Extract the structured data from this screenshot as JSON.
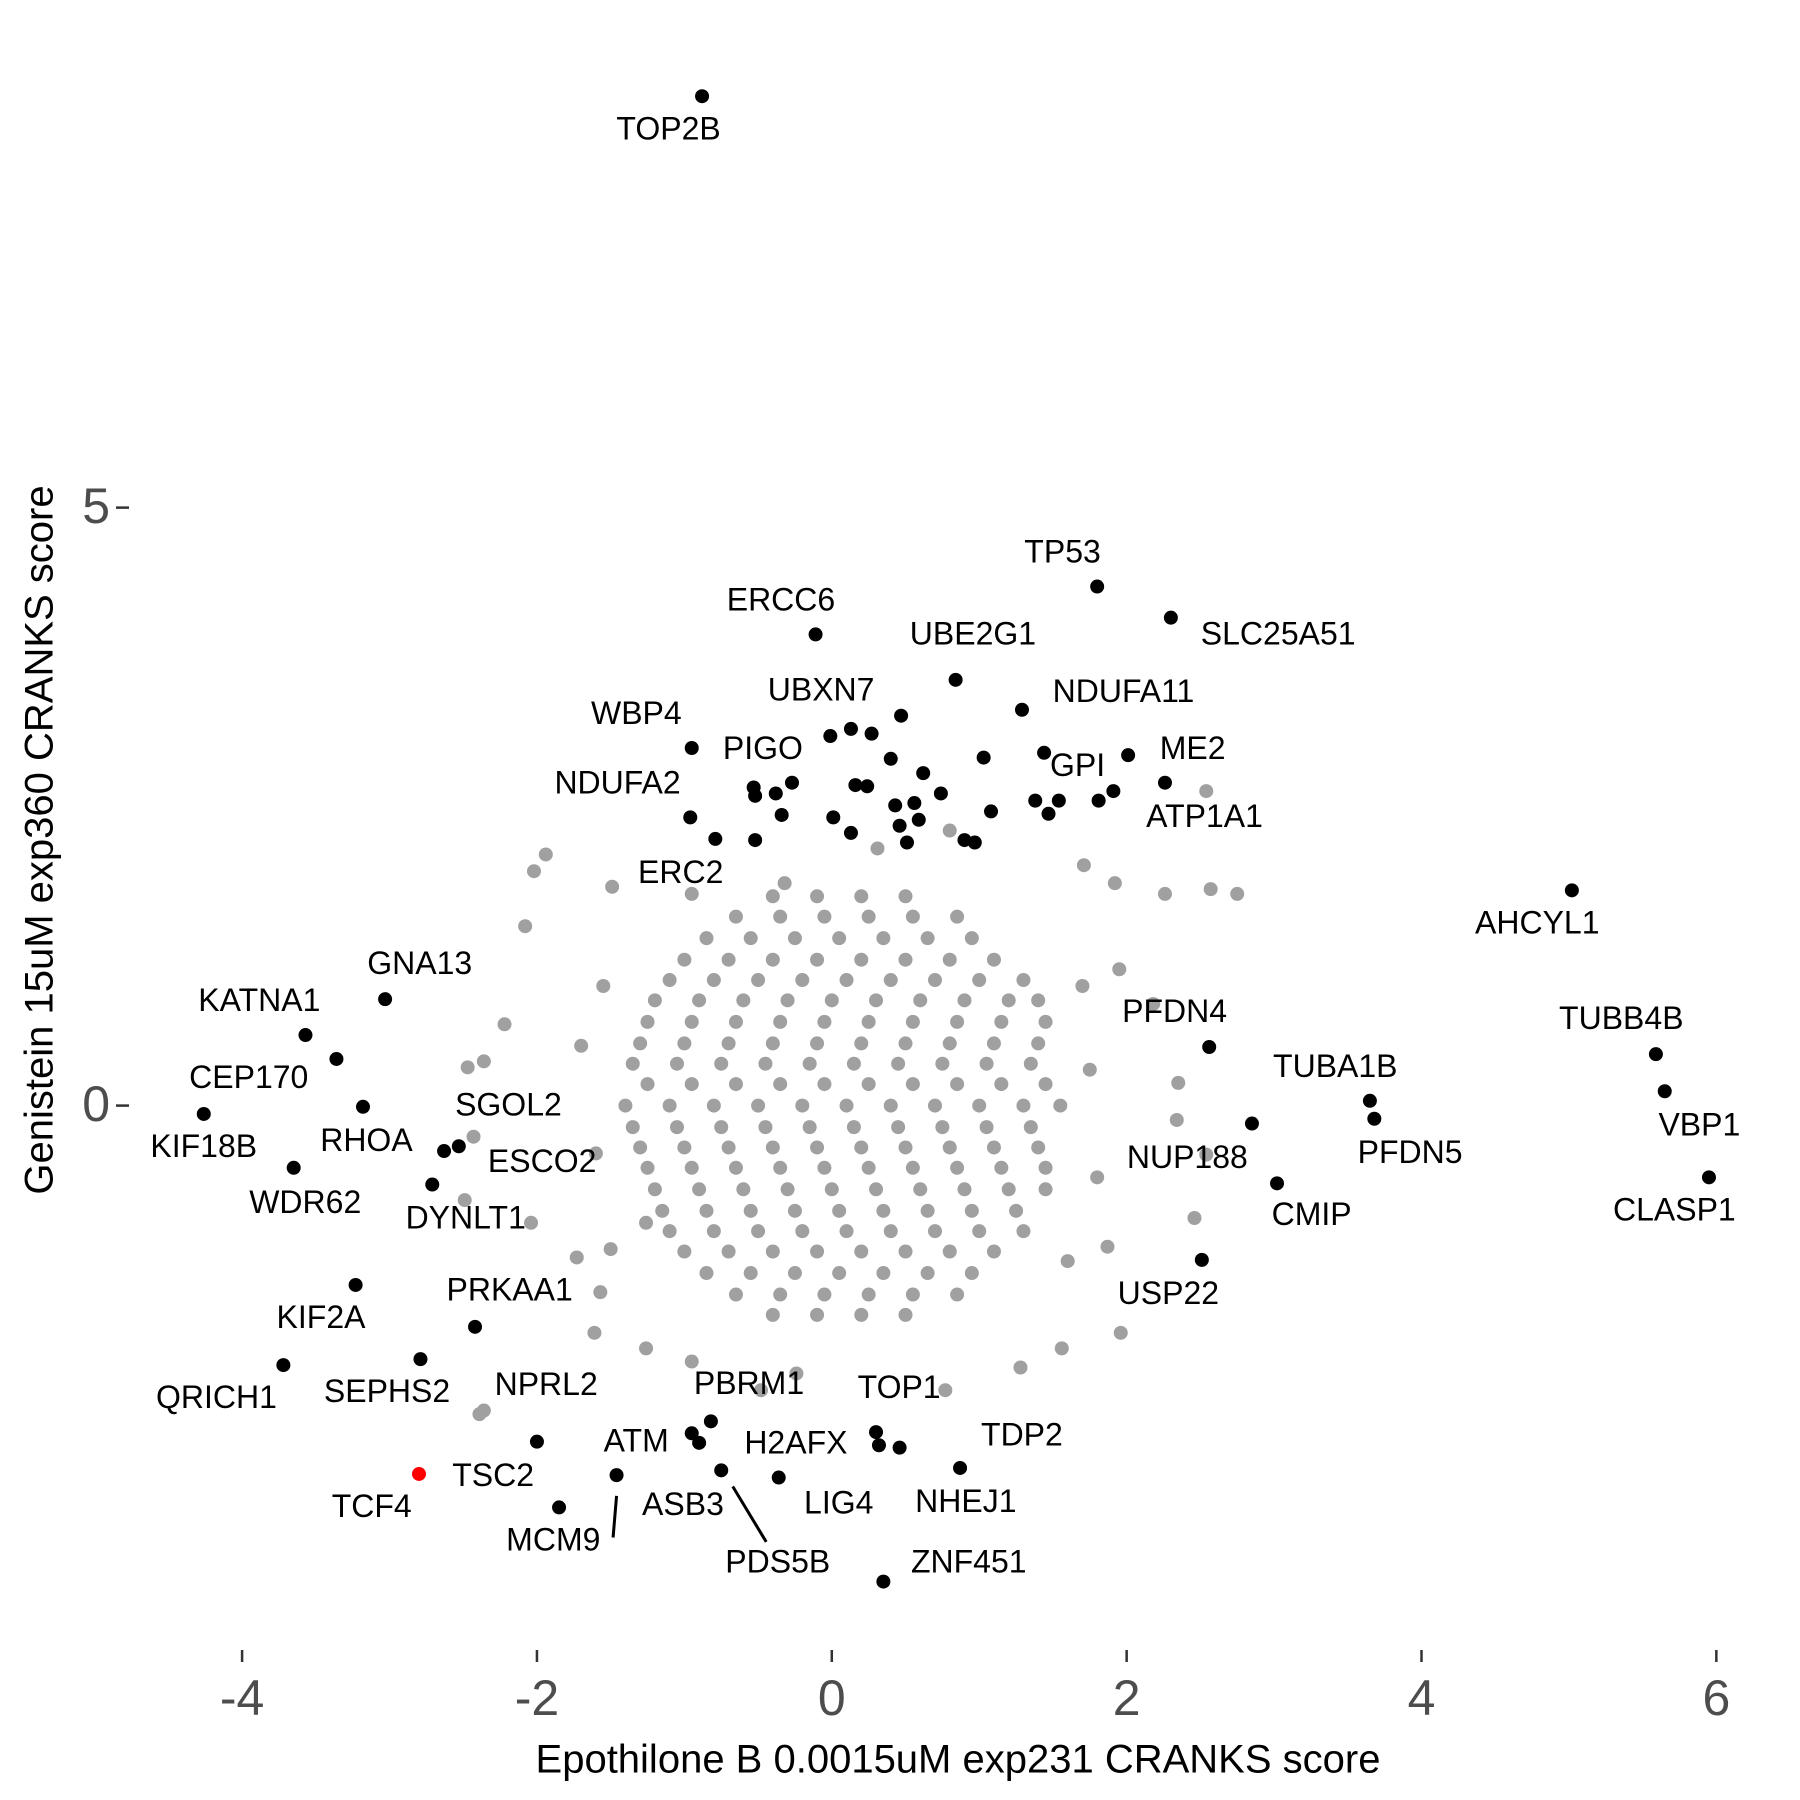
{
  "chart_data": {
    "type": "scatter",
    "xlabel": "Epothilone B 0.0015uM exp231 CRANKS score",
    "ylabel": "Genistein 15uM exp360 CRANKS score",
    "xlim": [
      -4.74,
      6.33
    ],
    "ylim": [
      -4.41,
      8.86
    ],
    "xticks": [
      -4,
      -2,
      0,
      2,
      4,
      6
    ],
    "yticks": [
      0,
      5
    ],
    "grid": false,
    "series": [
      {
        "color": "#a0a0a0",
        "x": [
          -0.4,
          -0.1,
          0.2,
          0.5,
          -0.65,
          -0.35,
          -0.05,
          0.25,
          0.55,
          0.85,
          -0.85,
          -0.55,
          -0.25,
          0.05,
          0.35,
          0.65,
          0.95,
          -1.0,
          -0.7,
          -0.4,
          -0.1,
          0.2,
          0.5,
          0.8,
          1.1,
          -1.1,
          -0.8,
          -0.5,
          -0.2,
          0.1,
          0.4,
          0.7,
          1.0,
          1.3,
          -1.2,
          -0.9,
          -0.6,
          -0.3,
          0,
          0.3,
          0.6,
          0.9,
          1.2,
          1.4,
          -1.25,
          -0.95,
          -0.65,
          -0.35,
          -0.05,
          0.25,
          0.55,
          0.85,
          1.15,
          1.45,
          -1.3,
          -1.0,
          -0.7,
          -0.4,
          -0.1,
          0.2,
          0.5,
          0.8,
          1.1,
          1.4,
          -1.35,
          -1.05,
          -0.75,
          -0.45,
          -0.15,
          0.15,
          0.45,
          0.75,
          1.05,
          1.35,
          -1.25,
          -0.95,
          -0.65,
          -0.35,
          -0.05,
          0.25,
          0.55,
          0.85,
          1.15,
          1.45,
          -1.4,
          -1.1,
          -0.8,
          -0.5,
          -0.2,
          0.1,
          0.4,
          0.7,
          1.0,
          1.3,
          1.55,
          -1.35,
          -1.05,
          -0.75,
          -0.45,
          -0.15,
          0.15,
          0.45,
          0.75,
          1.05,
          1.35,
          -1.3,
          -1.0,
          -0.7,
          -0.4,
          -0.1,
          0.2,
          0.5,
          0.8,
          1.1,
          1.4,
          -1.25,
          -0.95,
          -0.65,
          -0.35,
          -0.05,
          0.25,
          0.55,
          0.85,
          1.15,
          1.45,
          -1.2,
          -0.9,
          -0.6,
          -0.3,
          0,
          0.3,
          0.6,
          0.9,
          1.2,
          1.45,
          -1.15,
          -0.85,
          -0.55,
          -0.25,
          0.05,
          0.35,
          0.65,
          0.95,
          1.25,
          -1.1,
          -0.8,
          -0.5,
          -0.2,
          0.1,
          0.4,
          0.7,
          1.0,
          1.3,
          -1.0,
          -0.7,
          -0.4,
          -0.1,
          0.2,
          0.5,
          0.8,
          1.1,
          -0.85,
          -0.55,
          -0.25,
          0.05,
          0.35,
          0.65,
          0.95,
          -0.65,
          -0.35,
          -0.05,
          0.25,
          0.55,
          0.85,
          -0.4,
          -0.1,
          0.2,
          0.5,
          -1.94,
          -2.02,
          -1.49,
          -2.08,
          -2.22,
          -2.36,
          -2.47,
          -2.43,
          -2.49,
          -2.04,
          -1.57,
          -1.61,
          -2.39,
          -1.26,
          -0.95,
          -0.48,
          -0.24,
          0.77,
          1.28,
          1.56,
          1.96,
          1.87,
          2.46,
          2.54,
          2.34,
          2.35,
          2.26,
          2.57,
          2.75,
          2.54,
          1.92,
          1.71,
          0.8,
          0.31,
          -0.32,
          -0.95,
          2.18,
          1.95,
          -1.26,
          -1.73,
          -1.7,
          -1.6,
          1.75,
          1.8,
          1.7,
          -1.55,
          -1.5,
          1.6
        ],
        "y": [
          1.75,
          1.75,
          1.75,
          1.75,
          1.58,
          1.58,
          1.58,
          1.58,
          1.58,
          1.58,
          1.4,
          1.4,
          1.4,
          1.4,
          1.4,
          1.4,
          1.4,
          1.22,
          1.22,
          1.22,
          1.22,
          1.22,
          1.22,
          1.22,
          1.22,
          1.05,
          1.05,
          1.05,
          1.05,
          1.05,
          1.05,
          1.05,
          1.05,
          1.05,
          0.88,
          0.88,
          0.88,
          0.88,
          0.88,
          0.88,
          0.88,
          0.88,
          0.88,
          0.88,
          0.7,
          0.7,
          0.7,
          0.7,
          0.7,
          0.7,
          0.7,
          0.7,
          0.7,
          0.7,
          0.52,
          0.52,
          0.52,
          0.52,
          0.52,
          0.52,
          0.52,
          0.52,
          0.52,
          0.52,
          0.35,
          0.35,
          0.35,
          0.35,
          0.35,
          0.35,
          0.35,
          0.35,
          0.35,
          0.35,
          0.18,
          0.18,
          0.18,
          0.18,
          0.18,
          0.18,
          0.18,
          0.18,
          0.18,
          0.18,
          0,
          0,
          0,
          0,
          0,
          0,
          0,
          0,
          0,
          0,
          0,
          -0.18,
          -0.18,
          -0.18,
          -0.18,
          -0.18,
          -0.18,
          -0.18,
          -0.18,
          -0.18,
          -0.18,
          -0.35,
          -0.35,
          -0.35,
          -0.35,
          -0.35,
          -0.35,
          -0.35,
          -0.35,
          -0.35,
          -0.35,
          -0.52,
          -0.52,
          -0.52,
          -0.52,
          -0.52,
          -0.52,
          -0.52,
          -0.52,
          -0.52,
          -0.52,
          -0.7,
          -0.7,
          -0.7,
          -0.7,
          -0.7,
          -0.7,
          -0.7,
          -0.7,
          -0.7,
          -0.7,
          -0.88,
          -0.88,
          -0.88,
          -0.88,
          -0.88,
          -0.88,
          -0.88,
          -0.88,
          -0.88,
          -1.05,
          -1.05,
          -1.05,
          -1.05,
          -1.05,
          -1.05,
          -1.05,
          -1.05,
          -1.05,
          -1.22,
          -1.22,
          -1.22,
          -1.22,
          -1.22,
          -1.22,
          -1.22,
          -1.22,
          -1.4,
          -1.4,
          -1.4,
          -1.4,
          -1.4,
          -1.4,
          -1.4,
          -1.58,
          -1.58,
          -1.58,
          -1.58,
          -1.58,
          -1.58,
          -1.75,
          -1.75,
          -1.75,
          -1.75,
          2.1,
          1.96,
          1.83,
          1.5,
          0.68,
          0.37,
          0.32,
          -0.26,
          -0.79,
          -0.98,
          -1.56,
          -1.9,
          -2.58,
          -2.03,
          -2.14,
          -2.38,
          -2.24,
          -2.38,
          -2.19,
          -2.03,
          -1.9,
          -1.18,
          -0.94,
          -0.41,
          -0.12,
          0.19,
          1.77,
          1.81,
          1.77,
          2.63,
          1.86,
          2.01,
          2.3,
          2.15,
          1.86,
          1.77,
          0.85,
          1.14,
          -0.98,
          -1.27,
          0.5,
          -0.4,
          0.3,
          -0.6,
          1.0,
          1.0,
          -1.2,
          -1.3
        ]
      },
      {
        "color": "#000000",
        "x": [
          -0.88,
          1.8,
          2.3,
          -0.11,
          0.84,
          1.29,
          -0.95,
          -0.01,
          -0.53,
          -0.96,
          -0.79,
          1.44,
          2.26,
          1.91,
          5.02,
          5.59,
          5.65,
          5.95,
          2.56,
          3.65,
          3.68,
          2.85,
          3.02,
          2.51,
          -3.03,
          -3.57,
          -3.36,
          -4.26,
          -3.18,
          -3.65,
          -2.53,
          -2.63,
          -2.71,
          -3.23,
          -2.42,
          -3.72,
          -2.79,
          -1.85,
          -1.46,
          -0.82,
          -0.9,
          -0.75,
          0.32,
          0.3,
          -0.36,
          0.46,
          0.87,
          0.35,
          -2.0
        ],
        "y": [
          8.44,
          4.34,
          4.08,
          3.94,
          3.56,
          3.31,
          2.99,
          3.09,
          2.66,
          2.41,
          2.23,
          2.95,
          2.7,
          2.63,
          1.8,
          0.43,
          0.12,
          -0.6,
          0.49,
          0.04,
          -0.11,
          -0.15,
          -0.65,
          -1.29,
          0.89,
          0.59,
          0.39,
          -0.07,
          -0.01,
          -0.52,
          -0.34,
          -0.38,
          -0.66,
          -1.5,
          -1.85,
          -2.17,
          -2.12,
          -3.36,
          -3.09,
          -2.64,
          -2.82,
          -3.05,
          -2.84,
          -2.73,
          -3.11,
          -2.86,
          -3.03,
          -3.98,
          -2.81
        ],
        "labels": [
          "TOP2B",
          "TP53",
          "SLC25A51",
          "ERCC6",
          "UBE2G1",
          "NDUFA11",
          "WBP4",
          "UBXN7",
          "PIGO",
          "NDUFA2",
          "ERC2",
          "GPI",
          "ME2",
          "ATP1A1",
          "AHCYL1",
          "TUBB4B",
          "VBP1",
          "CLASP1",
          "PFDN4",
          "TUBA1B",
          "PFDN5",
          "NUP188",
          "CMIP",
          "USP22",
          "GNA13",
          "KATNA1",
          "CEP170",
          "KIF18B",
          "RHOA",
          "WDR62",
          "SGOL2",
          "ESCO2",
          "DYNLT1",
          "KIF2A",
          "PRKAA1",
          "QRICH1",
          "SEPHS2",
          "MCM9",
          "ATM",
          "PBRM1",
          "ASB3",
          "PDS5B",
          "H2AFX",
          "TOP1",
          "LIG4",
          "TDP2",
          "NHEJ1",
          "ZNF451",
          "TSC2"
        ]
      },
      {
        "color": "#000000",
        "x": [
          0.13,
          0.27,
          0.47,
          0.4,
          0.62,
          0.74,
          1.03,
          0.16,
          0.24,
          0.01,
          0.13,
          0.43,
          0.56,
          0.46,
          0.59,
          0.51,
          0.9,
          0.97,
          1.08,
          1.38,
          1.47,
          1.54,
          1.81,
          2.01,
          -0.27,
          -0.38,
          -0.52,
          -0.34,
          -0.52,
          -0.95
        ],
        "y": [
          3.15,
          3.11,
          3.26,
          2.9,
          2.78,
          2.61,
          2.91,
          2.68,
          2.67,
          2.41,
          2.28,
          2.51,
          2.53,
          2.34,
          2.39,
          2.2,
          2.22,
          2.2,
          2.46,
          2.55,
          2.44,
          2.55,
          2.55,
          2.93,
          2.7,
          2.61,
          2.59,
          2.43,
          2.22,
          -2.74
        ]
      },
      {
        "color": "#a0a0a0",
        "x": [
          -2.36
        ],
        "y": [
          -2.55
        ],
        "labels": [
          "NPRL2"
        ]
      },
      {
        "color": "#ff0000",
        "x": [
          -2.8
        ],
        "y": [
          -3.08
        ],
        "labels": [
          "TCF4"
        ]
      }
    ]
  }
}
